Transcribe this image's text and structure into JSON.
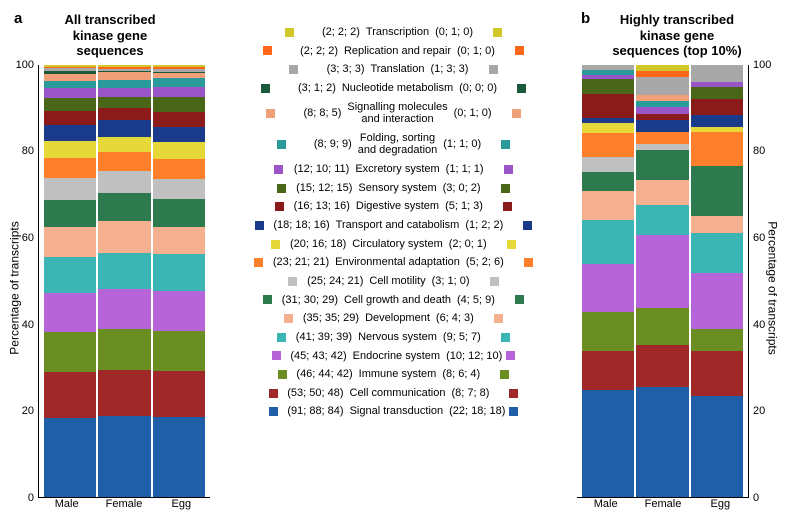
{
  "panelA": {
    "label": "a",
    "title": "All transcribed\nkinase gene\nsequences"
  },
  "panelB": {
    "label": "b",
    "title": "Highly transcribed\nkinase gene\nsequences (top 10%)"
  },
  "yAxis": {
    "label": "Percentage of transcripts",
    "ticks": [
      0,
      20,
      40,
      60,
      80,
      100
    ]
  },
  "xLabels": [
    "Male",
    "Female",
    "Egg"
  ],
  "categories": [
    {
      "name": "Signal transduction",
      "color": "#1f5fa8",
      "left": "(91; 88; 84)",
      "right": "(22; 18; 18)"
    },
    {
      "name": "Cell communication",
      "color": "#a02828",
      "left": "(53; 50; 48)",
      "right": "(8; 7; 8)"
    },
    {
      "name": "Immune system",
      "color": "#6b8e23",
      "left": "(46; 44; 42)",
      "right": "(8; 6; 4)"
    },
    {
      "name": "Endocrine system",
      "color": "#b565d8",
      "left": "(45; 43; 42)",
      "right": "(10; 12; 10)"
    },
    {
      "name": "Nervous system",
      "color": "#3cb5b5",
      "left": "(41; 39; 39)",
      "right": "(9; 5; 7)"
    },
    {
      "name": "Development",
      "color": "#f5b090",
      "left": "(35; 35; 29)",
      "right": "(6; 4; 3)"
    },
    {
      "name": "Cell growth and death",
      "color": "#2e7a4f",
      "left": "(31; 30; 29)",
      "right": "(4; 5; 9)"
    },
    {
      "name": "Cell motility",
      "color": "#c0c0c0",
      "left": "(25; 24; 21)",
      "right": "(3; 1; 0)"
    },
    {
      "name": "Environmental adaptation",
      "color": "#ff7f2a",
      "left": "(23; 21; 21)",
      "right": "(5; 2; 6)"
    },
    {
      "name": "Circulatory system",
      "color": "#e6d838",
      "left": "(20; 16; 18)",
      "right": "(2; 0; 1)"
    },
    {
      "name": "Transport and catabolism",
      "color": "#1a3a8a",
      "left": "(18; 18; 16)",
      "right": "(1; 2; 2)"
    },
    {
      "name": "Digestive system",
      "color": "#8b1a1a",
      "left": "(16; 13; 16)",
      "right": "(5; 1; 3)"
    },
    {
      "name": "Sensory system",
      "color": "#4a6618",
      "left": "(15; 12; 15)",
      "right": "(3; 0; 2)"
    },
    {
      "name": "Excretory system",
      "color": "#9a55c8",
      "left": "(12; 10; 11)",
      "right": "(1; 1; 1)"
    },
    {
      "name": "Folding, sorting\nand degradation",
      "color": "#2a9a9a",
      "left": "(8; 9; 9)",
      "right": "(1; 1; 0)"
    },
    {
      "name": "Signalling molecules\nand interaction",
      "color": "#f0a078",
      "left": "(8; 8; 5)",
      "right": "(0; 1; 0)"
    },
    {
      "name": "Nucleotide metabolism",
      "color": "#1a5a3a",
      "left": "(3; 1; 2)",
      "right": "(0; 0; 0)"
    },
    {
      "name": "Translation",
      "color": "#a8a8a8",
      "left": "(3; 3; 3)",
      "right": "(1; 3; 3)"
    },
    {
      "name": "Replication and repair",
      "color": "#ff6618",
      "left": "(2; 2; 2)",
      "right": "(0; 1; 0)"
    },
    {
      "name": "Transcription",
      "color": "#d0c828",
      "left": "(2; 2; 2)",
      "right": "(0; 1; 0)"
    }
  ],
  "barsA": {
    "Male": [
      91,
      53,
      46,
      45,
      41,
      35,
      31,
      25,
      23,
      20,
      18,
      16,
      15,
      12,
      8,
      8,
      3,
      3,
      2,
      2
    ],
    "Female": [
      88,
      50,
      44,
      43,
      39,
      35,
      30,
      24,
      21,
      16,
      18,
      13,
      12,
      10,
      9,
      8,
      1,
      3,
      2,
      2
    ],
    "Egg": [
      84,
      48,
      42,
      42,
      39,
      29,
      29,
      21,
      21,
      18,
      16,
      16,
      15,
      11,
      9,
      5,
      2,
      3,
      2,
      2
    ]
  },
  "barsB": {
    "Male": [
      22,
      8,
      8,
      10,
      9,
      6,
      4,
      3,
      5,
      2,
      1,
      5,
      3,
      1,
      1,
      0,
      0,
      1,
      0,
      0
    ],
    "Female": [
      18,
      7,
      6,
      12,
      5,
      4,
      5,
      1,
      2,
      0,
      2,
      1,
      0,
      1,
      1,
      1,
      0,
      3,
      1,
      1
    ],
    "Egg": [
      18,
      8,
      4,
      10,
      7,
      3,
      9,
      0,
      6,
      1,
      2,
      3,
      2,
      1,
      0,
      0,
      0,
      3,
      0,
      0
    ]
  },
  "style": {
    "background": "#ffffff",
    "axis_color": "#000000",
    "font_size_title": 13,
    "font_size_axis": 11,
    "font_size_legend": 11,
    "bar_gap_pct": 8
  }
}
